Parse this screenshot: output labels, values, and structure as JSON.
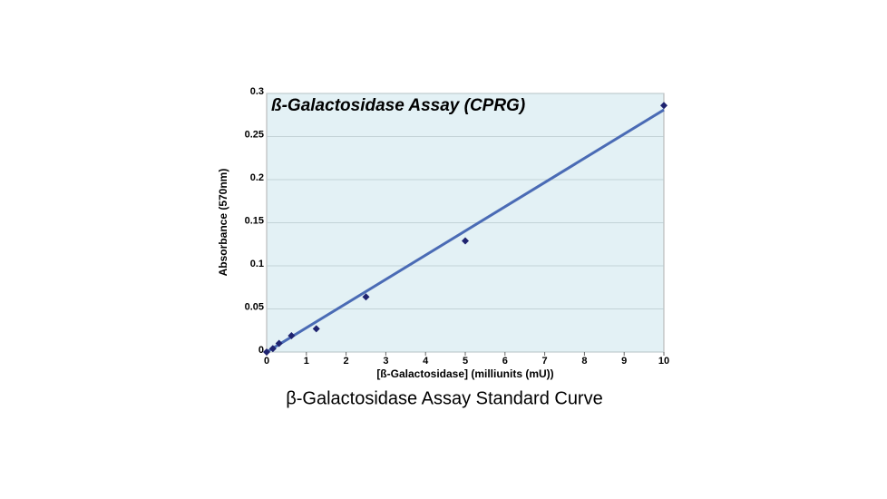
{
  "chart_data": {
    "type": "scatter",
    "title": "ß-Galactosidase Assay (CPRG)",
    "caption": "β-Galactosidase Assay Standard Curve",
    "x_label": "[ß-Galactosidase] (milliunits (mU))",
    "y_label": "Absorbance (570nm)",
    "x": [
      0,
      0.156,
      0.3125,
      0.625,
      1.25,
      2.5,
      5,
      10
    ],
    "values": [
      0,
      0.004,
      0.01,
      0.019,
      0.027,
      0.064,
      0.129,
      0.286
    ],
    "color": "#1f2370",
    "trendline": {
      "x": [
        0,
        10
      ],
      "values": [
        0,
        0.281
      ],
      "color": "#4a6bb5"
    },
    "xlim": [
      0,
      10
    ],
    "xticks": [
      0,
      1,
      2,
      3,
      4,
      5,
      6,
      7,
      8,
      9,
      10
    ],
    "ylim": [
      0,
      0.3
    ],
    "yticks": [
      0,
      0.05,
      0.1,
      0.15,
      0.2,
      0.25,
      0.3
    ],
    "grid": true,
    "background": "#e3f1f5"
  }
}
